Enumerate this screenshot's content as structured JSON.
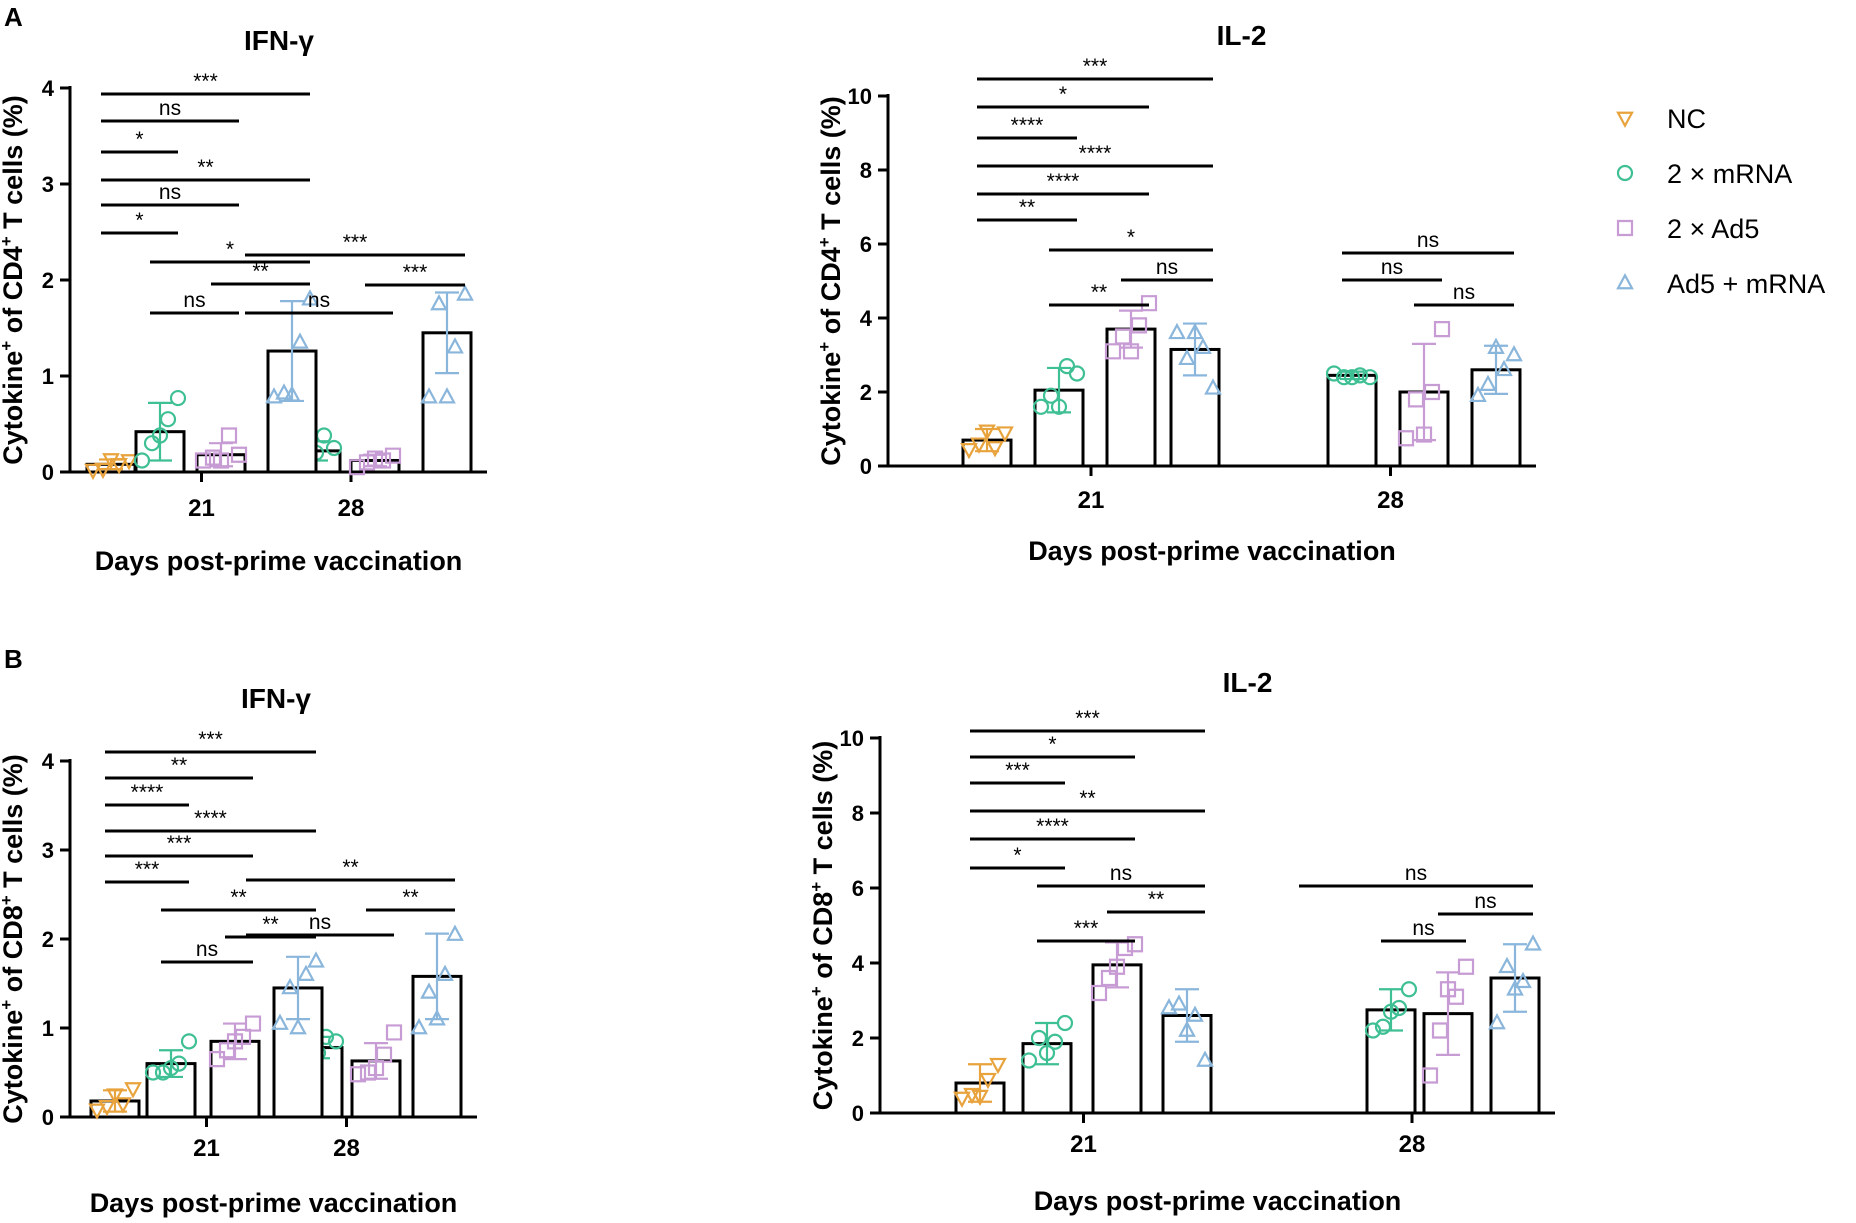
{
  "figure": {
    "panels": [
      "A",
      "B"
    ]
  },
  "colors": {
    "NC": "#e8a33d",
    "2 × mRNA": "#3fbf94",
    "2 × Ad5": "#c79bd4",
    "Ad5 + mRNA": "#8ab6dc"
  },
  "legend": [
    {
      "label": "NC",
      "icon": "triangle-down"
    },
    {
      "label": "2 × mRNA",
      "icon": "circle"
    },
    {
      "label": "2 × Ad5",
      "icon": "square"
    },
    {
      "label": "Ad5 + mRNA",
      "icon": "triangle-up"
    }
  ],
  "chart_data": [
    {
      "id": "A-ifng",
      "panel": "A",
      "type": "bar",
      "title": "IFN-γ",
      "ylabel": "Cytokine+ of CD4+ T cells (%)",
      "ylabel_parts": {
        "pre": "Cytokine",
        "sup1": "+",
        "mid": " of CD4",
        "sup2": "+",
        "post": " T cells (%)"
      },
      "xlabel": "Days post-prime vaccination",
      "ylim": [
        0,
        4
      ],
      "yticks": [
        "0",
        "1",
        "2",
        "3",
        "4"
      ],
      "categories": [
        "21",
        "28"
      ],
      "series": [
        {
          "name": "NC",
          "groups": [
            {
              "mean": 0.08,
              "sd": 0.05,
              "points": [
                0.02,
                0.12,
                0.08,
                0.03,
                0.13
              ]
            }
          ]
        },
        {
          "name": "2 × mRNA",
          "groups": [
            {
              "mean": 0.42,
              "sd": 0.3,
              "points": [
                0.12,
                0.77,
                0.55,
                0.3,
                0.38
              ]
            },
            {
              "mean": 0.22,
              "sd": 0.1,
              "points": [
                0.14,
                0.25,
                0.38,
                0.2,
                0.2
              ]
            }
          ]
        },
        {
          "name": "2 × Ad5",
          "groups": [
            {
              "mean": 0.18,
              "sd": 0.12,
              "points": [
                0.12,
                0.18,
                0.38,
                0.15,
                0.12
              ]
            },
            {
              "mean": 0.12,
              "sd": 0.06,
              "points": [
                0.05,
                0.17,
                0.12,
                0.1,
                0.14
              ]
            }
          ]
        },
        {
          "name": "Ad5 + mRNA",
          "groups": [
            {
              "mean": 1.26,
              "sd": 0.52,
              "points": [
                0.78,
                1.8,
                1.35,
                0.82,
                0.8
              ]
            },
            {
              "mean": 1.45,
              "sd": 0.42,
              "points": [
                0.78,
                1.85,
                1.3,
                1.75,
                0.78
              ]
            }
          ]
        }
      ],
      "significance": [
        {
          "text": "***",
          "from": 0,
          "to": 3
        },
        {
          "text": "ns",
          "from": 0,
          "to": 2
        },
        {
          "text": "*",
          "from": 0,
          "to": 1
        },
        {
          "text": "**",
          "from": 0,
          "to": 3
        },
        {
          "text": "ns",
          "from": 0,
          "to": 2
        },
        {
          "text": "*",
          "from": 0,
          "to": 1
        },
        {
          "text": "*",
          "from": 1,
          "to": 3
        },
        {
          "text": "**",
          "from": 2,
          "to": 3
        },
        {
          "text": "ns",
          "from": 1,
          "to": 2
        },
        {
          "text": "***",
          "from": 0,
          "to": 3
        },
        {
          "text": "***",
          "from": 2,
          "to": 3
        },
        {
          "text": "ns",
          "from": 0,
          "to": 2
        }
      ]
    },
    {
      "id": "A-il2",
      "panel": "A",
      "type": "bar",
      "title": "IL-2",
      "ylabel": "Cytokine+ of CD4+ T cells (%)",
      "ylabel_parts": {
        "pre": "Cytokine",
        "sup1": "+",
        "mid": " of CD4",
        "sup2": "+",
        "post": " T cells (%)"
      },
      "xlabel": "Days post-prime vaccination",
      "ylim": [
        0,
        10
      ],
      "yticks": [
        "0",
        "2",
        "4",
        "6",
        "8",
        "10"
      ],
      "categories": [
        "21",
        "28"
      ],
      "series": [
        {
          "name": "NC",
          "groups": [
            {
              "mean": 0.7,
              "sd": 0.3,
              "points": [
                0.45,
                0.9,
                0.5,
                0.6,
                0.95
              ]
            }
          ]
        },
        {
          "name": "2 × mRNA",
          "groups": [
            {
              "mean": 2.05,
              "sd": 0.6,
              "points": [
                1.6,
                2.5,
                2.7,
                1.9,
                1.6
              ]
            },
            {
              "mean": 2.45,
              "sd": 0.1,
              "points": [
                2.5,
                2.4,
                2.45,
                2.4,
                2.4
              ]
            }
          ]
        },
        {
          "name": "2 × Ad5",
          "groups": [
            {
              "mean": 3.7,
              "sd": 0.5,
              "points": [
                3.1,
                4.4,
                3.8,
                3.5,
                3.1
              ]
            },
            {
              "mean": 2.0,
              "sd": 1.3,
              "points": [
                0.75,
                3.7,
                2.0,
                1.8,
                0.85
              ]
            }
          ]
        },
        {
          "name": "Ad5 + mRNA",
          "groups": [
            {
              "mean": 3.15,
              "sd": 0.7,
              "points": [
                3.6,
                2.1,
                3.2,
                2.9,
                3.6
              ]
            },
            {
              "mean": 2.6,
              "sd": 0.65,
              "points": [
                1.9,
                3.0,
                2.6,
                2.2,
                3.2
              ]
            }
          ]
        }
      ],
      "significance": [
        {
          "text": "***",
          "from": 0,
          "to": 3
        },
        {
          "text": "*",
          "from": 0,
          "to": 2
        },
        {
          "text": "****",
          "from": 0,
          "to": 1
        },
        {
          "text": "****",
          "from": 0,
          "to": 3
        },
        {
          "text": "****",
          "from": 0,
          "to": 2
        },
        {
          "text": "**",
          "from": 0,
          "to": 1
        },
        {
          "text": "*",
          "from": 1,
          "to": 3
        },
        {
          "text": "ns",
          "from": 2,
          "to": 3
        },
        {
          "text": "**",
          "from": 1,
          "to": 2
        },
        {
          "text": "ns",
          "from": 1,
          "to": 3
        },
        {
          "text": "ns",
          "from": 1,
          "to": 2
        },
        {
          "text": "ns",
          "from": 2,
          "to": 3
        }
      ]
    },
    {
      "id": "B-ifng",
      "panel": "B",
      "type": "bar",
      "title": "IFN-γ",
      "ylabel": "Cytokine+ of CD8+ T cells (%)",
      "ylabel_parts": {
        "pre": "Cytokine",
        "sup1": "+",
        "mid": " of CD8",
        "sup2": "+",
        "post": " T cells (%)"
      },
      "xlabel": "Days post-prime vaccination",
      "ylim": [
        0,
        4
      ],
      "yticks": [
        "0",
        "1",
        "2",
        "3",
        "4"
      ],
      "categories": [
        "21",
        "28"
      ],
      "series": [
        {
          "name": "NC",
          "groups": [
            {
              "mean": 0.18,
              "sd": 0.12,
              "points": [
                0.08,
                0.32,
                0.15,
                0.12,
                0.25
              ]
            }
          ]
        },
        {
          "name": "2 × mRNA",
          "groups": [
            {
              "mean": 0.6,
              "sd": 0.15,
              "points": [
                0.5,
                0.85,
                0.6,
                0.5,
                0.55
              ]
            },
            {
              "mean": 0.78,
              "sd": 0.12,
              "points": [
                0.7,
                0.85,
                0.9,
                0.68,
                0.72
              ]
            }
          ]
        },
        {
          "name": "2 × Ad5",
          "groups": [
            {
              "mean": 0.85,
              "sd": 0.2,
              "points": [
                0.65,
                1.05,
                0.9,
                0.75,
                0.85
              ]
            },
            {
              "mean": 0.63,
              "sd": 0.2,
              "points": [
                0.48,
                0.95,
                0.7,
                0.5,
                0.55
              ]
            }
          ]
        },
        {
          "name": "Ad5 + mRNA",
          "groups": [
            {
              "mean": 1.45,
              "sd": 0.35,
              "points": [
                1.05,
                1.75,
                1.6,
                1.45,
                1.0
              ]
            },
            {
              "mean": 1.58,
              "sd": 0.48,
              "points": [
                1.0,
                2.05,
                1.6,
                1.4,
                1.1
              ]
            }
          ]
        }
      ],
      "significance": [
        {
          "text": "***",
          "from": 0,
          "to": 3
        },
        {
          "text": "**",
          "from": 0,
          "to": 2
        },
        {
          "text": "****",
          "from": 0,
          "to": 1
        },
        {
          "text": "****",
          "from": 0,
          "to": 3
        },
        {
          "text": "***",
          "from": 0,
          "to": 2
        },
        {
          "text": "***",
          "from": 0,
          "to": 1
        },
        {
          "text": "**",
          "from": 1,
          "to": 3
        },
        {
          "text": "**",
          "from": 2,
          "to": 3
        },
        {
          "text": "ns",
          "from": 1,
          "to": 2
        },
        {
          "text": "**",
          "from": 0,
          "to": 3
        },
        {
          "text": "**",
          "from": 2,
          "to": 3
        },
        {
          "text": "ns",
          "from": 0,
          "to": 2
        }
      ]
    },
    {
      "id": "B-il2",
      "panel": "B",
      "type": "bar",
      "title": "IL-2",
      "ylabel": "Cytokine+ of CD8+ T cells (%)",
      "ylabel_parts": {
        "pre": "Cytokine",
        "sup1": "+",
        "mid": " of CD8",
        "sup2": "+",
        "post": " T cells (%)"
      },
      "xlabel": "Days post-prime vaccination",
      "ylim": [
        0,
        10
      ],
      "yticks": [
        "0",
        "2",
        "4",
        "6",
        "8",
        "10"
      ],
      "categories": [
        "21",
        "28"
      ],
      "series": [
        {
          "name": "NC",
          "groups": [
            {
              "mean": 0.8,
              "sd": 0.5,
              "points": [
                0.4,
                1.3,
                0.9,
                0.5,
                0.45
              ]
            }
          ]
        },
        {
          "name": "2 × mRNA",
          "groups": [
            {
              "mean": 1.85,
              "sd": 0.55,
              "points": [
                1.4,
                2.4,
                1.9,
                2.0,
                1.6
              ]
            },
            {
              "mean": 2.75,
              "sd": 0.55,
              "points": [
                2.2,
                3.3,
                2.8,
                2.3,
                2.7
              ]
            }
          ]
        },
        {
          "name": "2 × Ad5",
          "groups": [
            {
              "mean": 3.95,
              "sd": 0.6,
              "points": [
                3.2,
                4.5,
                4.4,
                3.6,
                3.9
              ]
            },
            {
              "mean": 2.65,
              "sd": 1.1,
              "points": [
                1.0,
                3.9,
                3.1,
                2.2,
                3.3
              ]
            }
          ]
        },
        {
          "name": "Ad5 + mRNA",
          "groups": [
            {
              "mean": 2.6,
              "sd": 0.7,
              "points": [
                2.8,
                1.4,
                2.6,
                2.9,
                2.2
              ]
            },
            {
              "mean": 3.6,
              "sd": 0.9,
              "points": [
                2.4,
                4.5,
                3.5,
                3.9,
                3.3
              ]
            }
          ]
        }
      ],
      "significance": [
        {
          "text": "***",
          "from": 0,
          "to": 3
        },
        {
          "text": "*",
          "from": 0,
          "to": 2
        },
        {
          "text": "***",
          "from": 0,
          "to": 1
        },
        {
          "text": "**",
          "from": 0,
          "to": 3
        },
        {
          "text": "****",
          "from": 0,
          "to": 2
        },
        {
          "text": "*",
          "from": 0,
          "to": 1
        },
        {
          "text": "ns",
          "from": 1,
          "to": 3
        },
        {
          "text": "**",
          "from": 2,
          "to": 3
        },
        {
          "text": "***",
          "from": 1,
          "to": 2
        },
        {
          "text": "ns",
          "from": 0,
          "to": 3
        },
        {
          "text": "ns",
          "from": 2,
          "to": 3
        },
        {
          "text": "ns",
          "from": 1,
          "to": 2
        }
      ]
    }
  ]
}
